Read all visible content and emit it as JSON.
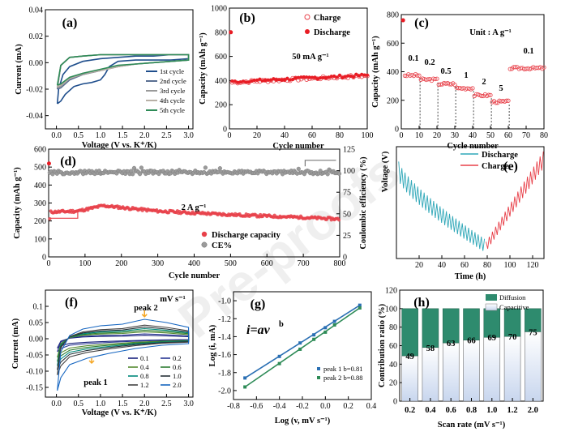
{
  "watermark": "Pre-proofs",
  "colors": {
    "cycle1": "#1f4e8c",
    "cycle2": "#5a6f92",
    "cycle3": "#9a9a9a",
    "cycle4": "#b8b0a6",
    "cycle5": "#2e8b57",
    "charge": "#e8414a",
    "discharge": "#e81c24",
    "ce": "#9b9b9b",
    "discharge_e": "#2fa7b8",
    "charge_e": "#e8414a",
    "diffusion": "#2e8b6e",
    "capacitive": "#c8d6ee"
  },
  "panels": {
    "a": {
      "label": "(a)",
      "xlabel": "Voltage (V vs. K⁺/K)",
      "ylabel": "Current (mA)"
    },
    "b": {
      "label": "(b)",
      "xlabel": "Cycle number",
      "ylabel": "Capacity (mAh g⁻¹)",
      "annotation": "50 mA g⁻¹"
    },
    "c": {
      "label": "(c)",
      "xlabel": "Cycle number",
      "ylabel": "Capacity (mAh g⁻¹)",
      "unit_note": "Unit : A g⁻¹"
    },
    "d": {
      "label": "(d)",
      "xlabel": "Cycle number",
      "ylabel": "Capacity (mAh g⁻¹)",
      "y2label": "Coulombic efficiency (%)",
      "annotation": "2 A g⁻¹"
    },
    "e": {
      "label": "(e)",
      "xlabel": "Time (h)",
      "ylabel": "Voltage (V)"
    },
    "f": {
      "label": "(f)",
      "xlabel": "Voltage (V vs. K⁺/K)",
      "ylabel": "Current (mA)",
      "unit_note": "mV s⁻¹",
      "peak1": "peak 1",
      "peak2": "peak 2"
    },
    "g": {
      "label": "(g)",
      "xlabel": "Log (v, mV s⁻¹)",
      "ylabel": "Log (i, mA)",
      "equation": "i=av",
      "equation_sup": "b"
    },
    "h": {
      "label": "(h)",
      "xlabel": "Scan rate (mV s⁻¹)",
      "ylabel": "Contribution ratio (%)"
    }
  },
  "chart_data": [
    {
      "id": "a",
      "type": "line",
      "xlim": [
        -0.25,
        3.1
      ],
      "ylim": [
        -0.05,
        0.04
      ],
      "xticks": [
        0.0,
        0.5,
        1.0,
        1.5,
        2.0,
        2.5,
        3.0
      ],
      "yticks": [
        0.04,
        0.02,
        0.0,
        -0.02,
        -0.04
      ],
      "xtick_labels": [
        "0.0",
        "0.5",
        "1.0",
        "1.5",
        "2.0",
        "2.5",
        "3.0"
      ],
      "ytick_labels": [
        "0.04",
        "0.02",
        "0.00",
        "-0.02",
        "-0.04"
      ],
      "legend": [
        "1st cycle",
        "2nd cycle",
        "3rd cycle",
        "4th cycle",
        "5th cycle"
      ],
      "series": [
        {
          "name": "1st cycle",
          "x": [
            0.02,
            0.1,
            0.2,
            0.4,
            0.6,
            0.8,
            1.0,
            1.1,
            1.2,
            1.4,
            1.8,
            2.2,
            2.6,
            3.0,
            3.0,
            2.6,
            2.2,
            1.8,
            1.4,
            1.0,
            0.6,
            0.3,
            0.15,
            0.05,
            0.02
          ],
          "y": [
            -0.031,
            -0.029,
            -0.024,
            -0.018,
            -0.016,
            -0.015,
            -0.013,
            -0.009,
            -0.003,
            0.001,
            0.002,
            0.002,
            0.002,
            0.003,
            0.006,
            0.006,
            0.005,
            0.005,
            0.004,
            0.003,
            0.001,
            -0.003,
            -0.009,
            -0.02,
            -0.031
          ]
        },
        {
          "name": "2nd cycle",
          "x": [
            0.02,
            0.1,
            0.3,
            0.6,
            1.0,
            1.4,
            1.8,
            2.2,
            2.6,
            3.0,
            3.0,
            2.6,
            2.2,
            1.8,
            1.4,
            1.0,
            0.6,
            0.3,
            0.1,
            0.02
          ],
          "y": [
            -0.02,
            -0.019,
            -0.013,
            -0.009,
            -0.006,
            -0.003,
            -0.001,
            0.0,
            0.001,
            0.002,
            0.006,
            0.006,
            0.006,
            0.006,
            0.006,
            0.006,
            0.005,
            0.004,
            -0.002,
            -0.02
          ]
        },
        {
          "name": "3rd cycle",
          "x": [
            0.02,
            0.1,
            0.3,
            0.6,
            1.0,
            1.4,
            1.8,
            2.2,
            2.6,
            3.0,
            3.0,
            2.6,
            2.2,
            1.8,
            1.4,
            1.0,
            0.6,
            0.3,
            0.1,
            0.02
          ],
          "y": [
            -0.019,
            -0.018,
            -0.012,
            -0.009,
            -0.006,
            -0.003,
            -0.001,
            0.0,
            0.001,
            0.002,
            0.006,
            0.006,
            0.006,
            0.006,
            0.006,
            0.006,
            0.005,
            0.004,
            -0.002,
            -0.019
          ]
        },
        {
          "name": "4th cycle",
          "x": [
            0.02,
            0.1,
            0.3,
            0.6,
            1.0,
            1.4,
            1.8,
            2.2,
            2.6,
            3.0,
            3.0,
            2.6,
            2.2,
            1.8,
            1.4,
            1.0,
            0.6,
            0.3,
            0.1,
            0.02
          ],
          "y": [
            -0.018,
            -0.017,
            -0.012,
            -0.008,
            -0.006,
            -0.003,
            -0.001,
            0.0,
            0.001,
            0.002,
            0.006,
            0.006,
            0.006,
            0.006,
            0.006,
            0.006,
            0.005,
            0.004,
            -0.002,
            -0.018
          ]
        },
        {
          "name": "5th cycle",
          "x": [
            0.02,
            0.1,
            0.3,
            0.6,
            1.0,
            1.4,
            1.8,
            2.2,
            2.6,
            3.0,
            3.0,
            2.6,
            2.2,
            1.8,
            1.4,
            1.0,
            0.6,
            0.3,
            0.1,
            0.02
          ],
          "y": [
            -0.017,
            -0.016,
            -0.011,
            -0.008,
            -0.005,
            -0.002,
            -0.001,
            0.0,
            0.001,
            0.002,
            0.006,
            0.006,
            0.006,
            0.006,
            0.006,
            0.006,
            0.005,
            0.004,
            -0.002,
            -0.017
          ]
        }
      ]
    },
    {
      "id": "b",
      "type": "scatter",
      "xlim": [
        0,
        100
      ],
      "ylim": [
        0,
        1000
      ],
      "xticks": [
        0,
        20,
        40,
        60,
        80,
        100
      ],
      "yticks": [
        0,
        200,
        400,
        600,
        800,
        1000
      ],
      "xtick_labels": [
        "0",
        "20",
        "40",
        "60",
        "80",
        "100"
      ],
      "ytick_labels": [
        "0",
        "200",
        "400",
        "600",
        "800",
        "1000"
      ],
      "legend": [
        "Charge",
        "Discharge"
      ],
      "first_discharge": {
        "x": 1,
        "y": 800
      },
      "series": [
        {
          "name": "Charge",
          "x_start": 2,
          "x_end": 100,
          "y_start": 385,
          "y_end": 440
        },
        {
          "name": "Discharge",
          "x_start": 2,
          "x_end": 100,
          "y_start": 390,
          "y_end": 445
        }
      ]
    },
    {
      "id": "c",
      "type": "scatter",
      "xlim": [
        0,
        80
      ],
      "ylim": [
        0,
        800
      ],
      "xticks": [
        0,
        10,
        20,
        30,
        40,
        50,
        60,
        70,
        80
      ],
      "yticks": [
        0,
        200,
        400,
        600,
        800
      ],
      "xtick_labels": [
        "0",
        "10",
        "20",
        "30",
        "40",
        "50",
        "60",
        "70",
        "80"
      ],
      "ytick_labels": [
        "0",
        "200",
        "400",
        "600",
        "800"
      ],
      "first_point": {
        "x": 1,
        "y": 760
      },
      "rate_labels": [
        "0.1",
        "0.2",
        "0.5",
        "1",
        "2",
        "5",
        "0.1"
      ],
      "segments": [
        {
          "rate": "0.1",
          "x_start": 2,
          "x_end": 10,
          "y": 375
        },
        {
          "rate": "0.2",
          "x_start": 11,
          "x_end": 20,
          "y": 345
        },
        {
          "rate": "0.5",
          "x_start": 21,
          "x_end": 30,
          "y": 315
        },
        {
          "rate": "1",
          "x_start": 31,
          "x_end": 40,
          "y": 285
        },
        {
          "rate": "2",
          "x_start": 41,
          "x_end": 50,
          "y": 235
        },
        {
          "rate": "5",
          "x_start": 51,
          "x_end": 60,
          "y": 190
        },
        {
          "rate": "0.1",
          "x_start": 61,
          "x_end": 80,
          "y": 425
        }
      ]
    },
    {
      "id": "d",
      "type": "scatter",
      "xlim": [
        0,
        800
      ],
      "ylim": [
        0,
        600
      ],
      "y2lim": [
        0,
        125
      ],
      "xticks": [
        0,
        100,
        200,
        300,
        400,
        500,
        600,
        700,
        800
      ],
      "yticks": [
        0,
        100,
        200,
        300,
        400,
        500,
        600
      ],
      "y2ticks": [
        0,
        25,
        50,
        75,
        100,
        125
      ],
      "xtick_labels": [
        "0",
        "100",
        "200",
        "300",
        "400",
        "500",
        "600",
        "700",
        "800"
      ],
      "ytick_labels": [
        "0",
        "100",
        "200",
        "300",
        "400",
        "500",
        "600"
      ],
      "y2tick_labels": [
        "0",
        "25",
        "50",
        "75",
        "100",
        "125"
      ],
      "legend": [
        "Discharge capacity",
        "CE%"
      ],
      "first_point": {
        "x": 1,
        "y": 520
      },
      "series": [
        {
          "name": "Discharge capacity",
          "points": [
            [
              5,
              250
            ],
            [
              80,
              255
            ],
            [
              150,
              285
            ],
            [
              300,
              255
            ],
            [
              500,
              235
            ],
            [
              700,
              220
            ],
            [
              800,
              210
            ]
          ]
        },
        {
          "name": "CE%",
          "constant": 98
        }
      ]
    },
    {
      "id": "e",
      "type": "line",
      "xlim": [
        0,
        130
      ],
      "ylim": [
        0,
        3.0
      ],
      "xticks": [
        20,
        40,
        60,
        80,
        100,
        120
      ],
      "xtick_labels": [
        "20",
        "40",
        "60",
        "80",
        "100",
        "120"
      ],
      "legend": [
        "Discharge",
        "Charge"
      ],
      "series": [
        {
          "name": "Discharge",
          "x_start": 2,
          "x_end": 79,
          "y_high_start": 2.6,
          "y_high_end": 0.5,
          "y_low_start": 2.1,
          "y_low_end": 0.15
        },
        {
          "name": "Charge",
          "x_start": 79,
          "x_end": 130,
          "y_high_start": 0.45,
          "y_high_end": 2.9,
          "y_low_start": 0.2,
          "y_low_end": 2.45
        }
      ]
    },
    {
      "id": "f",
      "type": "line",
      "xlim": [
        -0.25,
        3.1
      ],
      "ylim": [
        -0.18,
        0.15
      ],
      "xticks": [
        0.0,
        0.5,
        1.0,
        1.5,
        2.0,
        2.5,
        3.0
      ],
      "yticks": [
        0.1,
        0.05,
        0.0,
        -0.05,
        -0.1,
        -0.15
      ],
      "xtick_labels": [
        "0.0",
        "0.5",
        "1.0",
        "1.5",
        "2.0",
        "2.5",
        "3.0"
      ],
      "ytick_labels": [
        "0.1",
        "0.05",
        "0.00",
        "-0.05",
        "-0.10",
        "-0.15"
      ],
      "legend": [
        "0.1",
        "0.2",
        "0.4",
        "0.6",
        "0.8",
        "1.0",
        "1.2",
        "2.0"
      ],
      "series": [
        {
          "name": "0.1",
          "scale": 0.18,
          "color": "#1a237e"
        },
        {
          "name": "0.2",
          "scale": 0.25,
          "color": "#283593"
        },
        {
          "name": "0.4",
          "scale": 0.36,
          "color": "#558b2f"
        },
        {
          "name": "0.6",
          "scale": 0.44,
          "color": "#2e7d32"
        },
        {
          "name": "0.8",
          "scale": 0.52,
          "color": "#00897b"
        },
        {
          "name": "1.0",
          "scale": 0.6,
          "color": "#263238"
        },
        {
          "name": "1.2",
          "scale": 0.7,
          "color": "#424242"
        },
        {
          "name": "2.0",
          "scale": 1.0,
          "color": "#1565c0"
        }
      ]
    },
    {
      "id": "g",
      "type": "scatter",
      "xlim": [
        -0.8,
        0.4
      ],
      "ylim": [
        -2.1,
        -0.9
      ],
      "xticks": [
        -0.8,
        -0.6,
        -0.4,
        -0.2,
        0.0,
        0.2,
        0.4
      ],
      "yticks": [
        -1.0,
        -1.2,
        -1.4,
        -1.6,
        -1.8,
        -2.0
      ],
      "xtick_labels": [
        "-0.8",
        "-0.6",
        "-0.4",
        "-0.2",
        "0.0",
        "0.2",
        "0.4"
      ],
      "ytick_labels": [
        "-1.0",
        "-1.2",
        "-1.4",
        "-1.6",
        "-1.8",
        "-2.0"
      ],
      "legend": [
        "peak 1  b=0.81",
        "peak 2  b=0.88"
      ],
      "series": [
        {
          "name": "peak 1  b=0.81",
          "x": [
            -0.7,
            -0.4,
            -0.22,
            -0.1,
            0.0,
            0.08,
            0.3
          ],
          "y": [
            -1.86,
            -1.62,
            -1.47,
            -1.38,
            -1.3,
            -1.23,
            -1.05
          ]
        },
        {
          "name": "peak 2  b=0.88",
          "x": [
            -0.7,
            -0.4,
            -0.22,
            -0.1,
            0.0,
            0.08,
            0.3
          ],
          "y": [
            -1.96,
            -1.7,
            -1.54,
            -1.43,
            -1.35,
            -1.27,
            -1.08
          ]
        }
      ]
    },
    {
      "id": "h",
      "type": "bar",
      "categories": [
        "0.2",
        "0.4",
        "0.6",
        "0.8",
        "1.0",
        "1.2",
        "2.0"
      ],
      "ylim": [
        0,
        120
      ],
      "yticks": [
        0,
        20,
        40,
        60,
        80,
        100,
        120
      ],
      "ytick_labels": [
        "0",
        "20",
        "40",
        "60",
        "80",
        "100",
        "120"
      ],
      "legend": [
        "Diffusion",
        "Capacitive"
      ],
      "series": [
        {
          "name": "Capacitive",
          "values": [
            49,
            58,
            63,
            66,
            69,
            70,
            75
          ]
        },
        {
          "name": "Diffusion",
          "values": [
            51,
            42,
            37,
            34,
            31,
            30,
            25
          ]
        }
      ]
    }
  ]
}
